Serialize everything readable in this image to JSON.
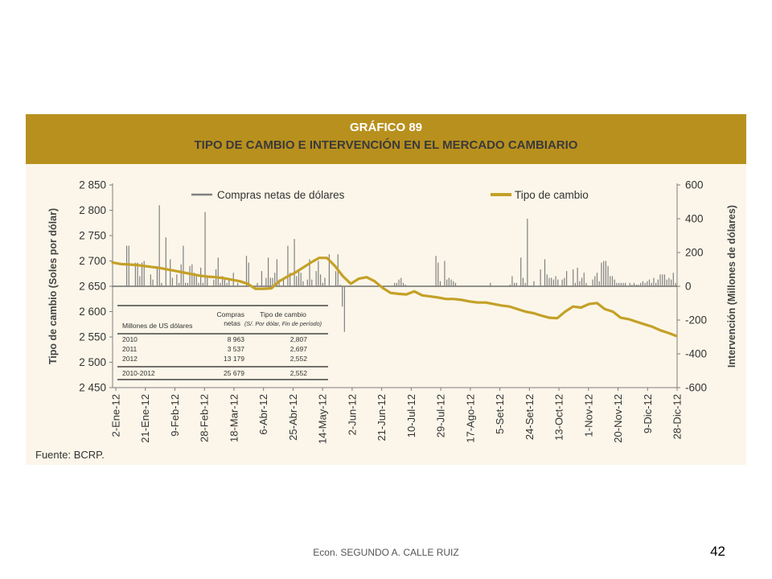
{
  "figure": {
    "number": "GRÁFICO 89",
    "title": "TIPO DE CAMBIO E INTERVENCIÓN EN EL MERCADO CAMBIARIO",
    "source": "Fuente: BCRP."
  },
  "footer": {
    "author": "Econ. SEGUNDO A. CALLE RUIZ",
    "page": "42"
  },
  "colors": {
    "banner": "#b8901d",
    "background": "#fbf6e9",
    "line": "#c4a027",
    "bars": "#808080"
  },
  "chart_data": {
    "type": "bar+line",
    "ylabel_left": "Tipo de cambio (Soles por dólar)",
    "ylabel_right": "Intervención (Millones de dólares)",
    "ylim_left": [
      2450,
      2850
    ],
    "ylim_right": [
      -600,
      600
    ],
    "yticks_left": [
      "2 850",
      "2 800",
      "2 750",
      "2 700",
      "2 650",
      "2 600",
      "2 550",
      "2 500",
      "2 450"
    ],
    "yticks_right": [
      "600",
      "400",
      "200",
      "0",
      "-200",
      "-400",
      "-600"
    ],
    "xticks": [
      "2-Ene-12",
      "21-Ene-12",
      "9-Feb-12",
      "28-Feb-12",
      "18-Mar-12",
      "6-Abr-12",
      "25-Abr-12",
      "14-May-12",
      "2-Jun-12",
      "21-Jun-12",
      "10-Jul-12",
      "29-Jul-12",
      "17-Ago-12",
      "5-Set-12",
      "24-Set-12",
      "13-Oct-12",
      "1-Nov-12",
      "20-Nov-12",
      "9-Dic-12",
      "28-Dic-12"
    ],
    "legend": [
      "Compras netas de dólares",
      "Tipo de cambio"
    ],
    "legend_position": "top",
    "series": [
      {
        "name": "Tipo de cambio",
        "kind": "line",
        "axis": "left",
        "values": [
          2697,
          2694,
          2693,
          2692,
          2690,
          2688,
          2686,
          2683,
          2680,
          2677,
          2674,
          2671,
          2669,
          2668,
          2666,
          2663,
          2660,
          2655,
          2645,
          2645,
          2646,
          2660,
          2669,
          2677,
          2687,
          2697,
          2706,
          2706,
          2690,
          2670,
          2655,
          2665,
          2668,
          2660,
          2647,
          2637,
          2635,
          2634,
          2640,
          2632,
          2630,
          2628,
          2625,
          2625,
          2623,
          2620,
          2618,
          2618,
          2615,
          2612,
          2610,
          2605,
          2600,
          2597,
          2592,
          2588,
          2587,
          2600,
          2610,
          2608,
          2615,
          2617,
          2605,
          2600,
          2588,
          2585,
          2580,
          2575,
          2570,
          2563,
          2558,
          2552
        ]
      },
      {
        "name": "Compras netas de dólares",
        "kind": "bar",
        "axis": "right",
        "values": [
          0,
          0,
          0,
          0,
          0,
          240,
          240,
          0,
          0,
          140,
          140,
          60,
          140,
          150,
          0,
          0,
          70,
          40,
          0,
          120,
          480,
          20,
          0,
          290,
          0,
          160,
          50,
          0,
          70,
          20,
          130,
          240,
          20,
          20,
          120,
          130,
          80,
          60,
          20,
          110,
          20,
          440,
          50,
          0,
          0,
          40,
          100,
          170,
          20,
          60,
          40,
          20,
          40,
          0,
          80,
          0,
          20,
          0,
          0,
          0,
          180,
          140,
          0,
          0,
          0,
          20,
          0,
          90,
          0,
          50,
          170,
          50,
          50,
          80,
          160,
          40,
          0,
          40,
          0,
          240,
          80,
          0,
          280,
          60,
          90,
          80,
          30,
          0,
          40,
          160,
          40,
          0,
          90,
          150,
          70,
          20,
          50,
          0,
          190,
          0,
          0,
          90,
          190,
          10,
          -120,
          -270,
          0,
          0,
          0,
          0,
          0,
          0,
          0,
          0,
          0,
          0,
          0,
          0,
          0,
          0,
          0,
          0,
          0,
          0,
          0,
          0,
          0,
          0,
          20,
          20,
          40,
          50,
          20,
          10,
          0,
          0,
          0,
          0,
          0,
          0,
          0,
          0,
          0,
          0,
          0,
          0,
          0,
          180,
          140,
          30,
          0,
          150,
          40,
          50,
          40,
          30,
          20,
          0,
          0,
          0,
          0,
          0,
          0,
          0,
          0,
          0,
          0,
          0,
          0,
          0,
          0,
          0,
          20,
          0,
          0,
          0,
          0,
          0,
          0,
          0,
          0,
          10,
          60,
          20,
          20,
          0,
          170,
          50,
          20,
          400,
          0,
          0,
          30,
          0,
          0,
          100,
          0,
          160,
          70,
          50,
          50,
          40,
          60,
          40,
          0,
          40,
          50,
          90,
          0,
          0,
          100,
          20,
          110,
          30,
          50,
          80,
          20,
          0,
          0,
          40,
          60,
          80,
          30,
          140,
          150,
          150,
          120,
          60,
          60,
          40,
          20,
          20,
          20,
          20,
          20,
          0,
          20,
          10,
          20,
          10,
          10,
          20,
          30,
          20,
          30,
          40,
          20,
          50,
          20,
          40,
          70,
          70,
          70,
          40,
          50,
          40,
          80,
          20
        ]
      }
    ],
    "table": {
      "headers": [
        "Millones de US dólares",
        "Compras netas",
        "Tipo de cambio (S/. Por dólar, Fin de período)"
      ],
      "rows": [
        [
          "2010",
          "8 963",
          "2,807"
        ],
        [
          "2011",
          "3 537",
          "2,697"
        ],
        [
          "2012",
          "13 179",
          "2,552"
        ],
        [
          "2010-2012",
          "25 679",
          "2,552"
        ]
      ]
    }
  }
}
